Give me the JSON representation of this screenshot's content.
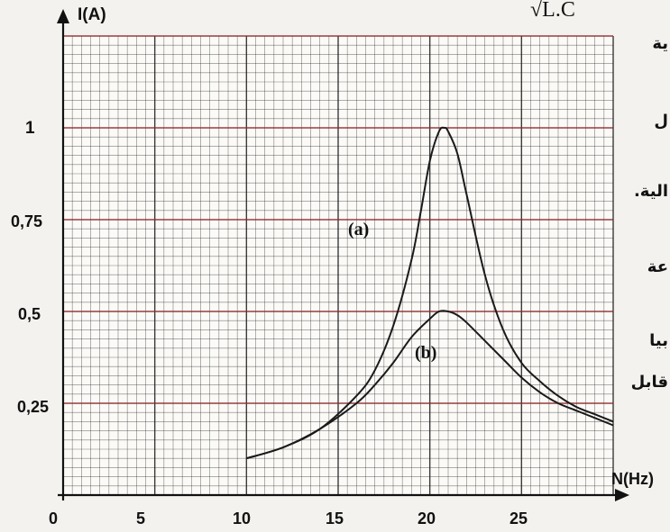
{
  "chart_data": {
    "type": "line",
    "xlabel": "N(Hz)",
    "ylabel": "I(A)",
    "xlim": [
      0,
      30
    ],
    "ylim": [
      0,
      1.25
    ],
    "x_ticks": [
      "0",
      "5",
      "10",
      "15",
      "20",
      "25"
    ],
    "y_ticks": [
      "0,25",
      "0,5",
      "0,75",
      "1"
    ],
    "series": [
      {
        "name": "(a)",
        "x": [
          10,
          12,
          14,
          16,
          17,
          18,
          19,
          19.5,
          20,
          20.5,
          20.8,
          21,
          21.5,
          22,
          23,
          24,
          25,
          26,
          27,
          28,
          29,
          30
        ],
        "y": [
          0.1,
          0.13,
          0.18,
          0.27,
          0.34,
          0.46,
          0.64,
          0.77,
          0.91,
          0.99,
          1.0,
          0.99,
          0.93,
          0.82,
          0.6,
          0.45,
          0.36,
          0.31,
          0.27,
          0.24,
          0.22,
          0.2
        ]
      },
      {
        "name": "(b)",
        "x": [
          10,
          12,
          14,
          16,
          17,
          18,
          19,
          20,
          20.5,
          21,
          21.5,
          22,
          23,
          24,
          25,
          26,
          27,
          28,
          29,
          30
        ],
        "y": [
          0.1,
          0.13,
          0.18,
          0.25,
          0.3,
          0.36,
          0.43,
          0.48,
          0.5,
          0.5,
          0.49,
          0.47,
          0.42,
          0.37,
          0.32,
          0.28,
          0.25,
          0.23,
          0.21,
          0.19
        ]
      }
    ]
  },
  "annotations": {
    "formula_fragment": "√L.C",
    "label_a": "(a)",
    "label_b": "(b)"
  },
  "side_text": [
    "ية",
    "ل",
    "الية.",
    "عة",
    "بيا",
    "قابل"
  ],
  "colors": {
    "grid_minor": "#1a1a1a",
    "grid_major_h": "#8b2a2a",
    "curve": "#1a1a1a",
    "background": "#f4f2ee"
  }
}
